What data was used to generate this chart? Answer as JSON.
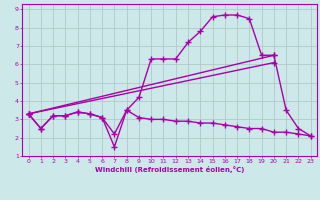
{
  "xlabel": "Windchill (Refroidissement éolien,°C)",
  "xlim": [
    -0.5,
    23.5
  ],
  "ylim": [
    1,
    9.3
  ],
  "xticks": [
    0,
    1,
    2,
    3,
    4,
    5,
    6,
    7,
    8,
    9,
    10,
    11,
    12,
    13,
    14,
    15,
    16,
    17,
    18,
    19,
    20,
    21,
    22,
    23
  ],
  "yticks": [
    1,
    2,
    3,
    4,
    5,
    6,
    7,
    8,
    9
  ],
  "bg_color": "#cce8e8",
  "grid_color": "#b0c8c8",
  "line_color": "#aa00aa",
  "line_width": 1.0,
  "marker": "+",
  "marker_size": 4,
  "lines": [
    {
      "x": [
        0,
        1,
        2,
        3,
        4,
        5,
        6,
        7,
        8,
        9,
        10,
        11,
        12,
        13,
        14,
        15,
        16,
        17,
        18,
        19,
        20,
        21,
        22,
        23
      ],
      "y": [
        3.3,
        2.5,
        3.2,
        3.2,
        3.4,
        3.3,
        3.1,
        2.2,
        3.5,
        4.2,
        6.3,
        6.3,
        6.3,
        7.2,
        7.8,
        8.6,
        8.7,
        8.7,
        8.5,
        6.5,
        6.5,
        3.5,
        2.5,
        2.1
      ]
    },
    {
      "x": [
        0,
        1,
        2,
        3,
        4,
        5,
        6,
        7,
        8,
        9,
        10,
        11,
        12,
        13,
        14,
        15,
        16,
        17,
        18,
        19,
        20,
        21,
        22,
        23
      ],
      "y": [
        3.3,
        2.5,
        3.2,
        3.2,
        3.4,
        3.3,
        3.1,
        1.5,
        3.5,
        3.1,
        3.0,
        3.0,
        2.9,
        2.9,
        2.8,
        2.8,
        2.7,
        2.6,
        2.5,
        2.5,
        2.3,
        2.3,
        2.2,
        2.1
      ]
    },
    {
      "x": [
        0,
        20
      ],
      "y": [
        3.3,
        6.5
      ]
    },
    {
      "x": [
        0,
        20
      ],
      "y": [
        3.3,
        6.1
      ]
    }
  ]
}
